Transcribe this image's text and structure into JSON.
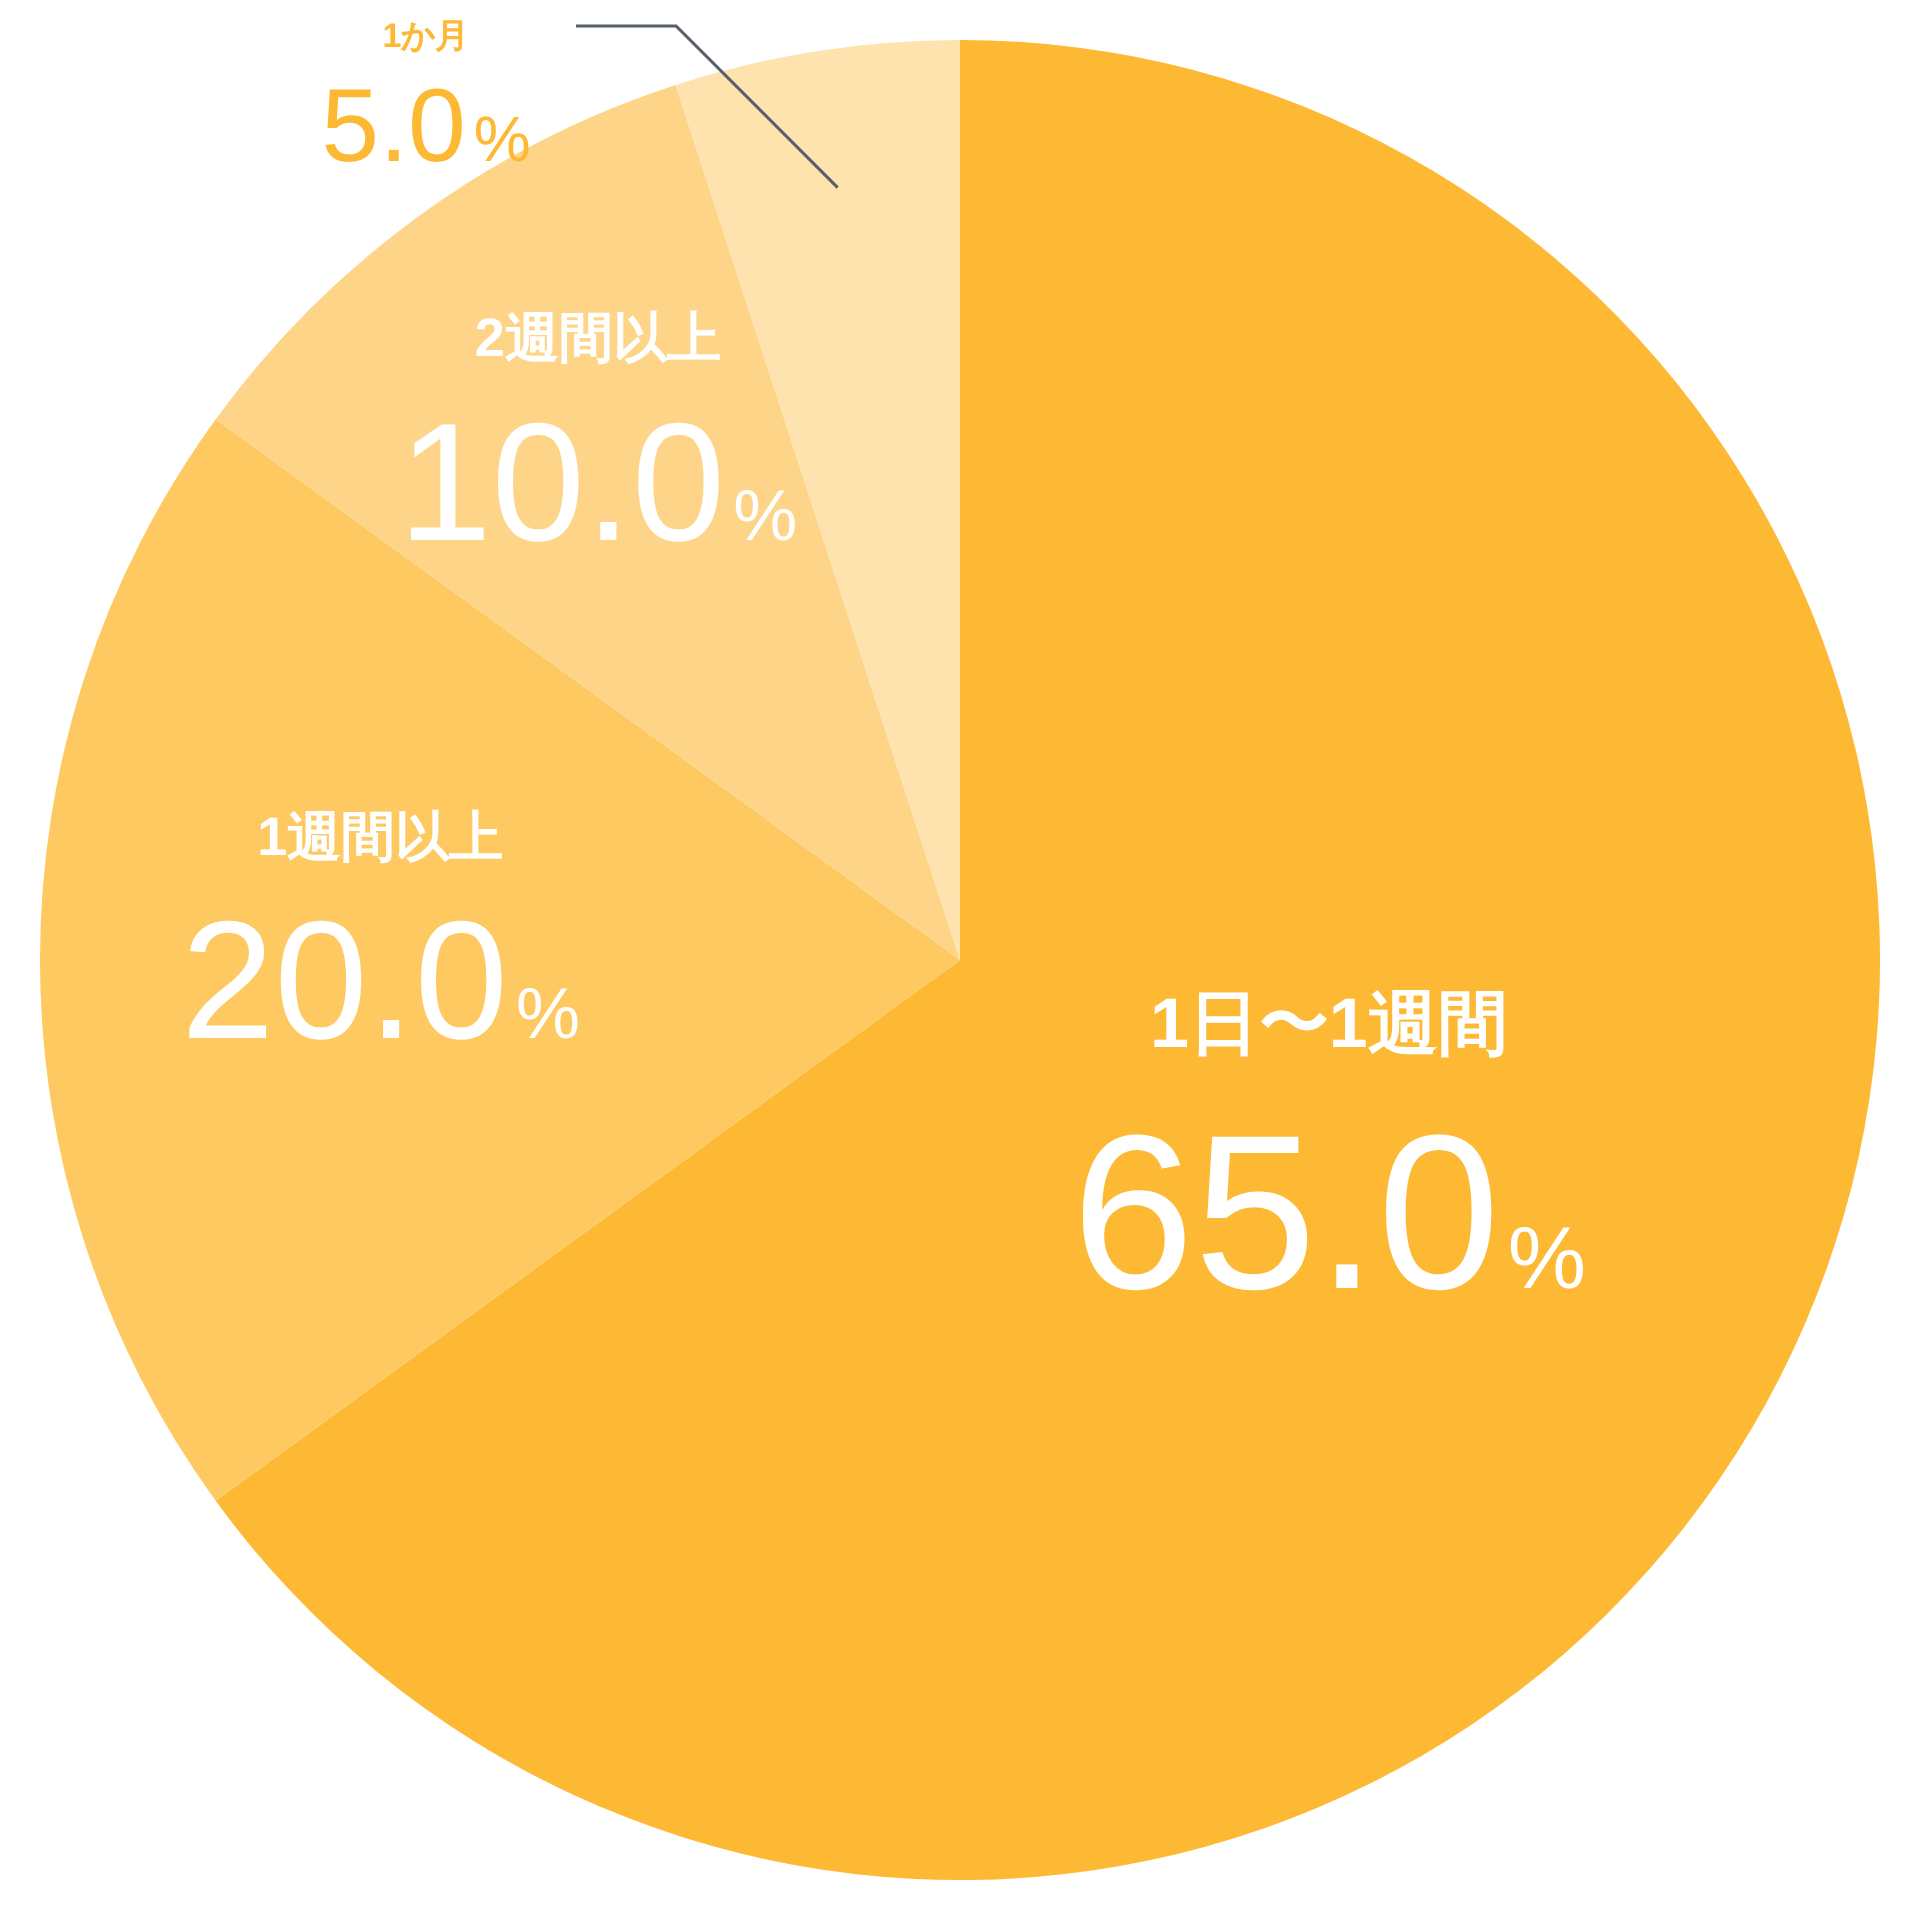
{
  "chart_data": {
    "type": "pie",
    "categories": [
      "1日〜1週間",
      "1週間以上",
      "2週間以上",
      "1か月"
    ],
    "values": [
      65,
      20,
      10,
      5
    ],
    "value_labels": [
      "65.0%",
      "20.0%",
      "10.0%",
      "5.0%"
    ],
    "colors": [
      "#fdb933",
      "#fdc960",
      "#fed588",
      "#fee3ae"
    ],
    "legend": false
  }
}
